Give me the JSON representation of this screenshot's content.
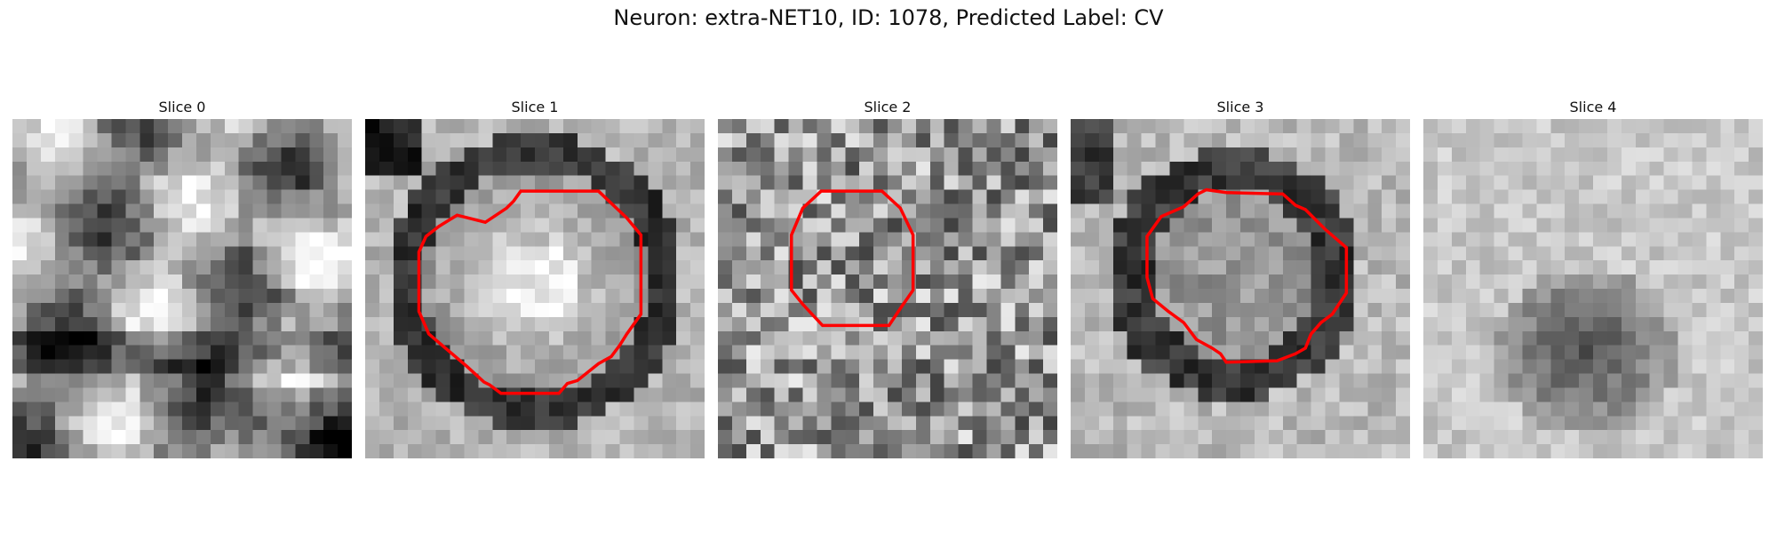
{
  "figure": {
    "title": "Neuron: extra-NET10, ID: 1078, Predicted Label: CV"
  },
  "panels": [
    {
      "title": "Slice 0",
      "has_contour": false
    },
    {
      "title": "Slice 1",
      "has_contour": true
    },
    {
      "title": "Slice 2",
      "has_contour": true
    },
    {
      "title": "Slice 3",
      "has_contour": true
    },
    {
      "title": "Slice 4",
      "has_contour": false
    }
  ],
  "colors": {
    "contour": "#ff0000",
    "colormap": "grayscale"
  }
}
